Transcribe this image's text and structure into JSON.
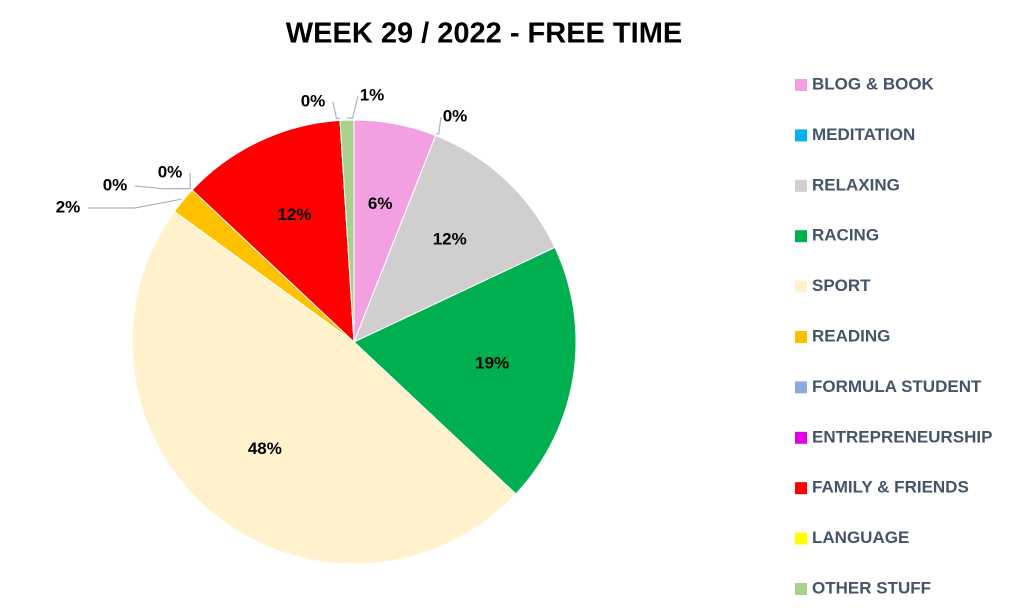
{
  "chart_data": {
    "type": "pie",
    "title": "WEEK 29 / 2022 - FREE TIME",
    "categories": [
      "BLOG & BOOK",
      "MEDITATION",
      "RELAXING",
      "RACING",
      "SPORT",
      "READING",
      "FORMULA STUDENT",
      "ENTREPRENEURSHIP",
      "FAMILY & FRIENDS",
      "LANGUAGE",
      "OTHER STUFF"
    ],
    "values": [
      6,
      0,
      12,
      19,
      48,
      2,
      0,
      0,
      12,
      0,
      1
    ],
    "value_labels": [
      "6%",
      "0%",
      "12%",
      "19%",
      "48%",
      "2%",
      "0%",
      "0%",
      "12%",
      "0%",
      "1%"
    ],
    "colors": [
      "#f2a0e1",
      "#00b0f0",
      "#d0cece",
      "#00b050",
      "#fff2cc",
      "#ffc000",
      "#8eaadb",
      "#e100e1",
      "#ff0000",
      "#ffff00",
      "#a9d18e"
    ],
    "legend": "right"
  }
}
